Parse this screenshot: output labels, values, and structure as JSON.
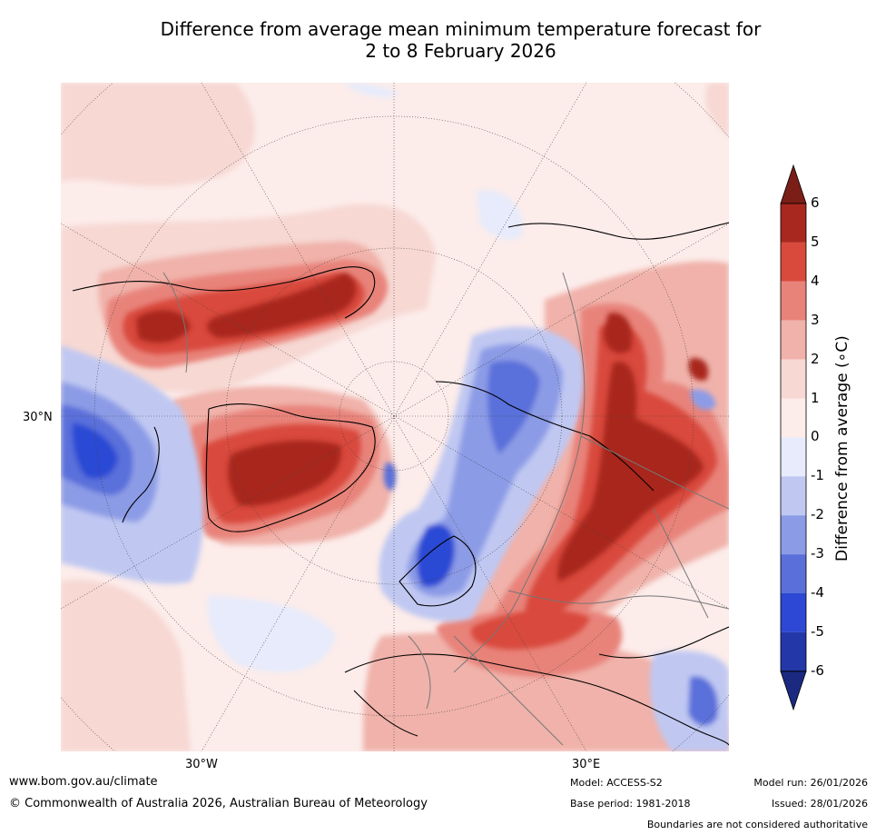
{
  "title_line1": "Difference from average mean minimum temperature forecast for",
  "title_line2": "2 to 8 February 2026",
  "map": {
    "lat_labels": [
      "30°N"
    ],
    "lon_labels": [
      "30°W",
      "30°E"
    ],
    "region": "Northern hemisphere polar view (Arctic, Europe, Asia, North America)"
  },
  "colorbar": {
    "label": "Difference from average (∘C)",
    "ticks": [
      "6",
      "5",
      "4",
      "3",
      "2",
      "1",
      "0",
      "-1",
      "-2",
      "-3",
      "-4",
      "-5",
      "-6"
    ],
    "colors": [
      "#7a1e17",
      "#a8281f",
      "#d94a3c",
      "#e8837a",
      "#f0b2aa",
      "#f7d8d3",
      "#fcecea",
      "#e7ebfb",
      "#c0c8f2",
      "#8c9be6",
      "#5a6fda",
      "#2c48d4",
      "#2437a8",
      "#1b2a80"
    ]
  },
  "footer": {
    "website": "www.bom.gov.au/climate",
    "copyright": "© Commonwealth of Australia 2026, Australian Bureau of Meteorology",
    "model": "Model: ACCESS-S2",
    "base_period": "Base period: 1981-2018",
    "model_run": "Model run: 26/01/2026",
    "issued": "Issued: 28/01/2026",
    "disclaimer": "Boundaries are not considered authoritative"
  }
}
